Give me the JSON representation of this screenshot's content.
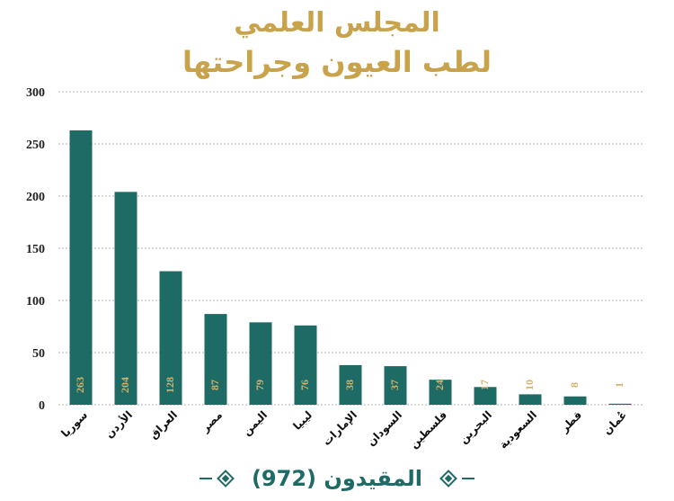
{
  "header": {
    "title_line1": "المجلس العلمي",
    "title_line2": "لطب العيون وجراحتها"
  },
  "footer": {
    "text": "المقيدون  (972)"
  },
  "colors": {
    "bar": "#1e6b66",
    "title": "#c9a24c",
    "bar_label": "#d4b06a",
    "grid": "#b0b0b0"
  },
  "chart_data": {
    "type": "bar",
    "categories": [
      "سوريا",
      "الأردن",
      "العراق",
      "مصر",
      "اليمن",
      "ليبيا",
      "الإمارات",
      "السودان",
      "فلسطين",
      "البحرين",
      "السعودية",
      "قطر",
      "عُمان"
    ],
    "values": [
      263,
      204,
      128,
      87,
      79,
      76,
      38,
      37,
      24,
      17,
      10,
      8,
      1
    ],
    "value_labels": [
      "263",
      "204",
      "128",
      "87",
      "79",
      "76",
      "38",
      "37",
      "24",
      "17",
      "10",
      "8",
      "1"
    ],
    "ylim": [
      0,
      300
    ],
    "yticks": [
      0,
      50,
      100,
      150,
      200,
      250,
      300
    ],
    "ytick_labels": [
      "0",
      "50",
      "100",
      "150",
      "200",
      "250",
      "300"
    ],
    "grid": true,
    "xlabel": "",
    "ylabel": ""
  }
}
